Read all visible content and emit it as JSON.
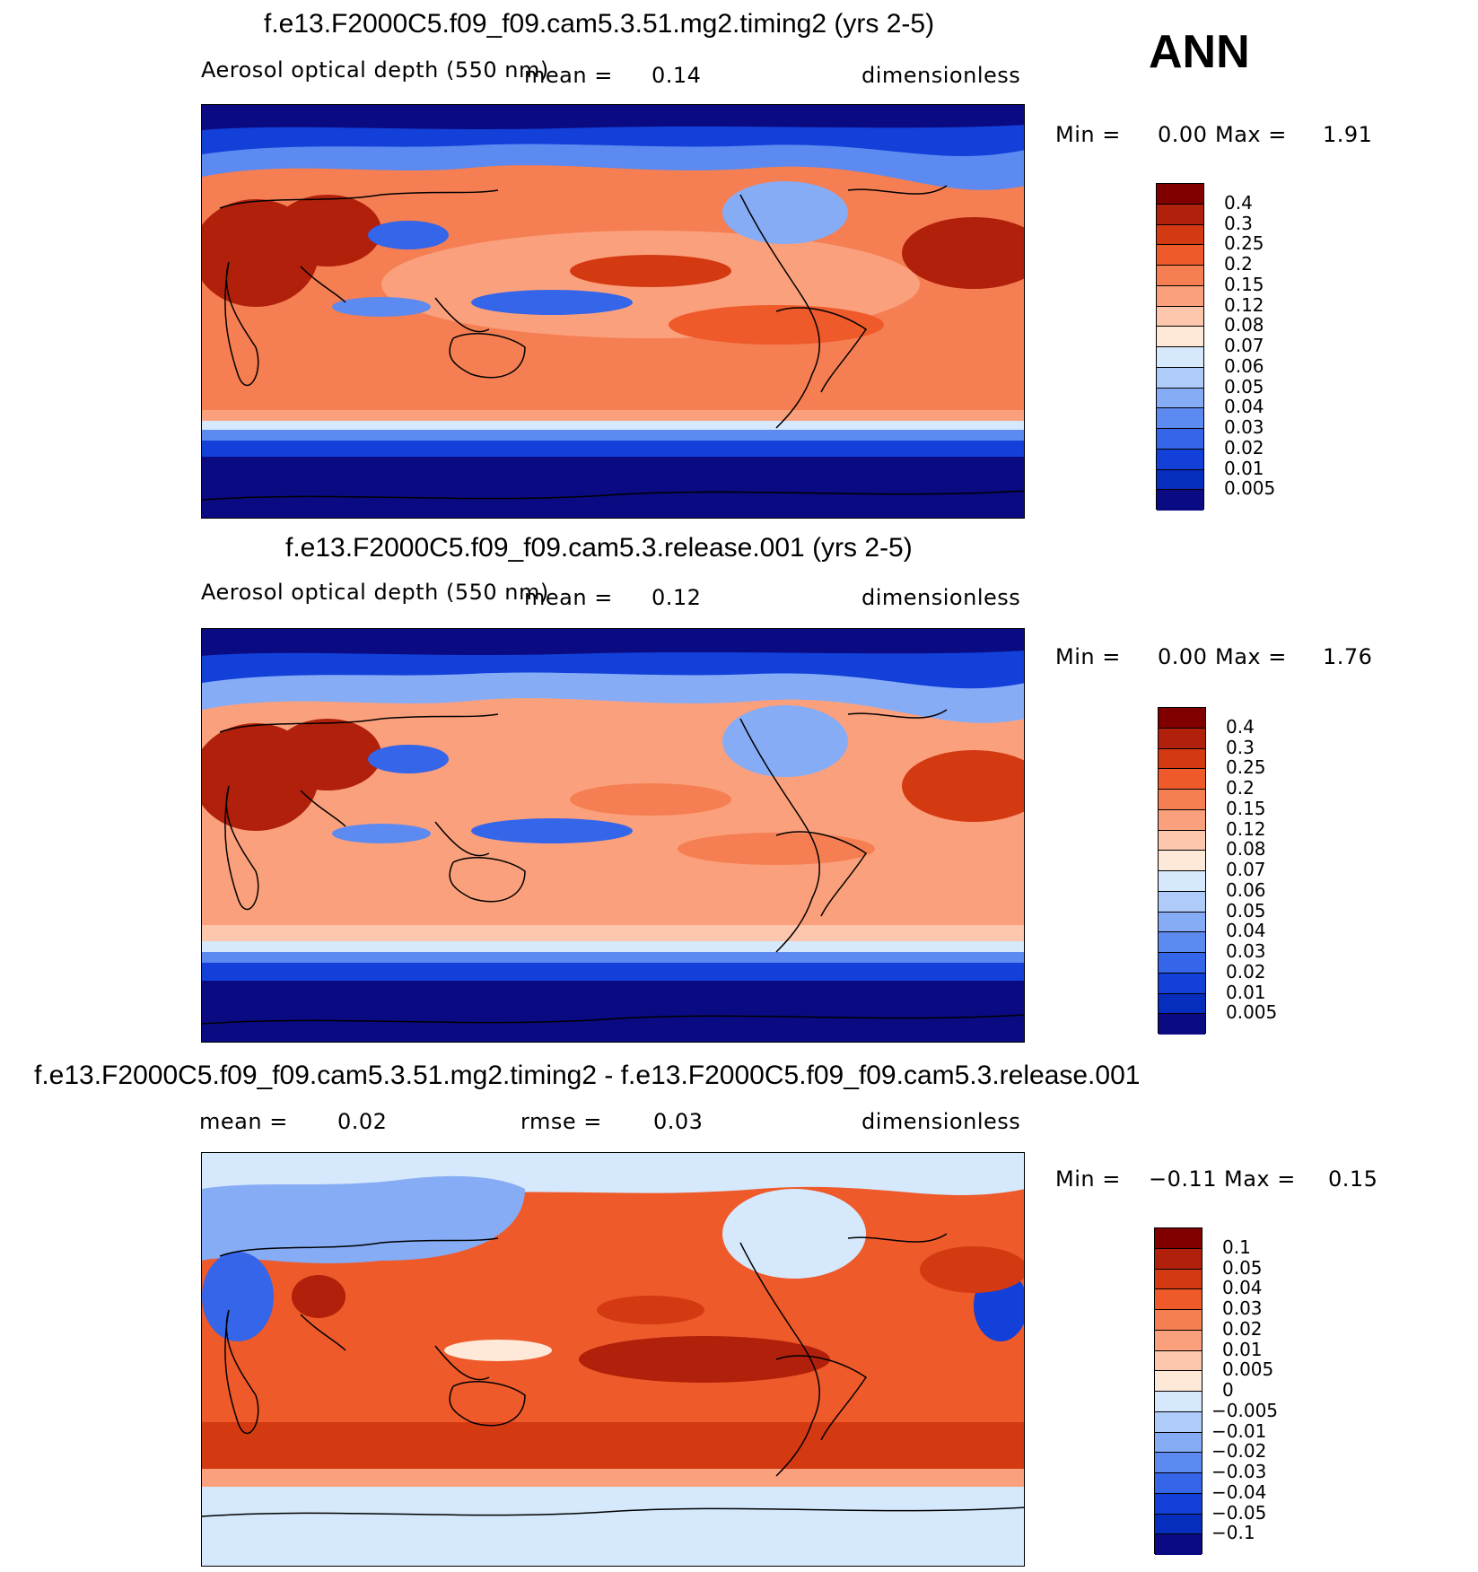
{
  "season": "ANN",
  "abs_levels": [
    "0.4",
    "0.3",
    "0.25",
    "0.2",
    "0.15",
    "0.12",
    "0.08",
    "0.07",
    "0.06",
    "0.05",
    "0.04",
    "0.03",
    "0.02",
    "0.01",
    "0.005"
  ],
  "abs_colors": [
    "#800000",
    "#b0200a",
    "#d43a12",
    "#ee5a2a",
    "#f57e52",
    "#fba07c",
    "#fcc7ac",
    "#fee9d8",
    "#d6e8fb",
    "#aecbfa",
    "#86acf6",
    "#5c8af0",
    "#3565e8",
    "#1240d8",
    "#062dbc",
    "#0a0a82"
  ],
  "diff_levels": [
    "0.1",
    "0.05",
    "0.04",
    "0.03",
    "0.02",
    "0.01",
    "0.005",
    "0",
    "−0.005",
    "−0.01",
    "−0.02",
    "−0.03",
    "−0.04",
    "−0.05",
    "−0.1"
  ],
  "diff_colors": [
    "#800000",
    "#b0200a",
    "#d43a12",
    "#ee5a2a",
    "#f57e52",
    "#fba07c",
    "#fcc7ac",
    "#fee9d8",
    "#d6e8fb",
    "#aecbfa",
    "#86acf6",
    "#5c8af0",
    "#3565e8",
    "#1240d8",
    "#062dbc",
    "#0a0a82"
  ],
  "panels": [
    {
      "title": "f.e13.F2000C5.f09_f09.cam5.3.51.mg2.timing2 (yrs 2-5)",
      "variable": "Aerosol optical depth (550 nm)",
      "mean_label": "mean =",
      "mean_value": "0.14",
      "units": "dimensionless",
      "min_label": "Min =",
      "min_value": "0.00",
      "max_label": "Max =",
      "max_value": "1.91"
    },
    {
      "title": "f.e13.F2000C5.f09_f09.cam5.3.release.001 (yrs 2-5)",
      "variable": "Aerosol optical depth (550 nm)",
      "mean_label": "mean =",
      "mean_value": "0.12",
      "units": "dimensionless",
      "min_label": "Min =",
      "min_value": "0.00",
      "max_label": "Max =",
      "max_value": "1.76"
    },
    {
      "title": "f.e13.F2000C5.f09_f09.cam5.3.51.mg2.timing2 - f.e13.F2000C5.f09_f09.cam5.3.release.001",
      "mean_label": "mean =",
      "mean_value": "0.02",
      "rmse_label": "rmse =",
      "rmse_value": "0.03",
      "units": "dimensionless",
      "min_label": "Min =",
      "min_value": "−0.11",
      "max_label": "Max =",
      "max_value": "0.15"
    }
  ],
  "chart_data": [
    {
      "type": "heatmap",
      "title": "f.e13.F2000C5.f09_f09.cam5.3.51.mg2.timing2 (yrs 2-5)",
      "variable": "Aerosol optical depth (550 nm)",
      "units": "dimensionless",
      "mean": 0.14,
      "min": 0.0,
      "max": 1.91,
      "contour_levels": [
        0.005,
        0.01,
        0.02,
        0.03,
        0.04,
        0.05,
        0.06,
        0.07,
        0.08,
        0.12,
        0.15,
        0.2,
        0.25,
        0.3,
        0.4
      ]
    },
    {
      "type": "heatmap",
      "title": "f.e13.F2000C5.f09_f09.cam5.3.release.001 (yrs 2-5)",
      "variable": "Aerosol optical depth (550 nm)",
      "units": "dimensionless",
      "mean": 0.12,
      "min": 0.0,
      "max": 1.76,
      "contour_levels": [
        0.005,
        0.01,
        0.02,
        0.03,
        0.04,
        0.05,
        0.06,
        0.07,
        0.08,
        0.12,
        0.15,
        0.2,
        0.25,
        0.3,
        0.4
      ]
    },
    {
      "type": "heatmap",
      "title": "f.e13.F2000C5.f09_f09.cam5.3.51.mg2.timing2 - f.e13.F2000C5.f09_f09.cam5.3.release.001",
      "units": "dimensionless",
      "mean": 0.02,
      "rmse": 0.03,
      "min": -0.11,
      "max": 0.15,
      "contour_levels": [
        -0.1,
        -0.05,
        -0.04,
        -0.03,
        -0.02,
        -0.01,
        -0.005,
        0,
        0.005,
        0.01,
        0.02,
        0.03,
        0.04,
        0.05,
        0.1
      ]
    }
  ]
}
